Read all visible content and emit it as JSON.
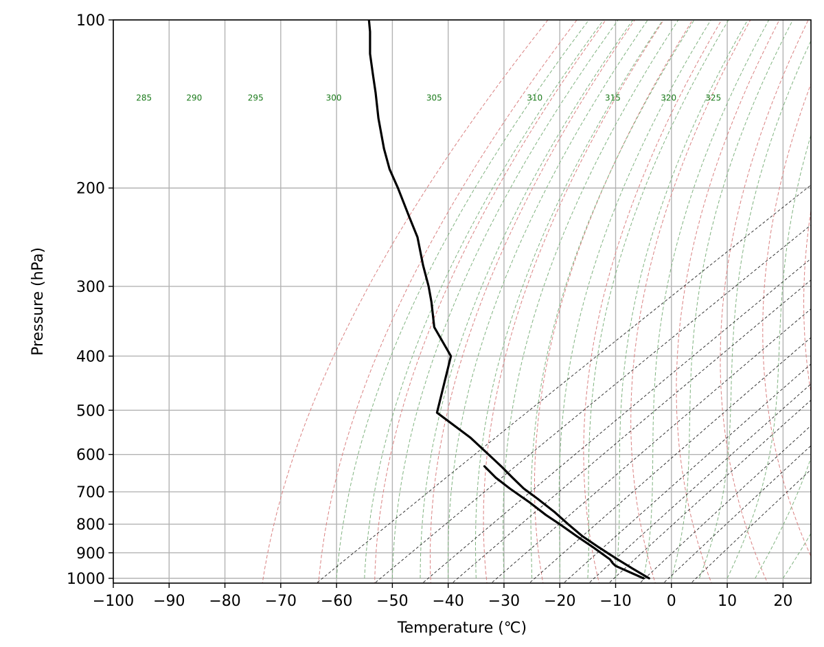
{
  "chart_data": {
    "type": "line",
    "title": "",
    "xlabel": "Temperature (℃)",
    "ylabel": "Pressure (hPa)",
    "xlim": [
      -100,
      25
    ],
    "ylim": [
      1020,
      100
    ],
    "y_scale": "log",
    "grid": true,
    "x_ticks": [
      -100,
      -90,
      -80,
      -70,
      -60,
      -50,
      -40,
      -30,
      -20,
      -10,
      0,
      10,
      20
    ],
    "x_tick_labels": [
      "−100",
      "−90",
      "−80",
      "−70",
      "−60",
      "−50",
      "−40",
      "−30",
      "−20",
      "−10",
      "0",
      "10",
      "20"
    ],
    "y_ticks": [
      100,
      200,
      300,
      400,
      500,
      600,
      700,
      800,
      900,
      1000
    ],
    "y_tick_labels": [
      "100",
      "200",
      "300",
      "400",
      "500",
      "600",
      "700",
      "800",
      "900",
      "1000"
    ],
    "theta_labels": [
      {
        "text": "285",
        "t": -94.5,
        "p": 138
      },
      {
        "text": "290",
        "t": -85.5,
        "p": 138
      },
      {
        "text": "295",
        "t": -74.5,
        "p": 138
      },
      {
        "text": "300",
        "t": -60.5,
        "p": 138
      },
      {
        "text": "305",
        "t": -42.5,
        "p": 138
      },
      {
        "text": "310",
        "t": -24.5,
        "p": 138
      },
      {
        "text": "315",
        "t": -10.5,
        "p": 138
      },
      {
        "text": "320",
        "t": -0.5,
        "p": 138
      },
      {
        "text": "325",
        "t": 7.5,
        "p": 138
      }
    ],
    "series": [
      {
        "color": "#000000",
        "points": [
          [
            -4.0,
            1000
          ],
          [
            -7.0,
            960
          ],
          [
            -10.0,
            920
          ],
          [
            -13.0,
            880
          ],
          [
            -16.0,
            840
          ],
          [
            -18.5,
            800
          ],
          [
            -21.0,
            760
          ],
          [
            -24.0,
            720
          ],
          [
            -26.5,
            690
          ],
          [
            -28.5,
            660
          ],
          [
            -30.5,
            630
          ],
          [
            -32.0,
            610
          ],
          [
            -36.0,
            560
          ],
          [
            -42.0,
            505
          ],
          [
            -39.5,
            400
          ],
          [
            -42.5,
            355
          ],
          [
            -43.0,
            320
          ],
          [
            -43.5,
            300
          ],
          [
            -44.5,
            275
          ],
          [
            -45.5,
            245
          ],
          [
            -47.0,
            225
          ],
          [
            -49.0,
            200
          ],
          [
            -50.5,
            185
          ],
          [
            -51.5,
            170
          ],
          [
            -52.5,
            150
          ],
          [
            -53.0,
            135
          ],
          [
            -53.5,
            125
          ],
          [
            -54.0,
            115
          ],
          [
            -54.0,
            105
          ],
          [
            -54.2,
            100
          ]
        ]
      },
      {
        "color": "#000000",
        "points": [
          [
            -5.0,
            1000
          ],
          [
            -10.0,
            950
          ],
          [
            -10.5,
            940
          ],
          [
            -11.0,
            925
          ],
          [
            -14.0,
            880
          ],
          [
            -17.0,
            840
          ],
          [
            -20.0,
            800
          ],
          [
            -22.5,
            770
          ],
          [
            -25.5,
            730
          ],
          [
            -29.0,
            690
          ],
          [
            -31.5,
            660
          ],
          [
            -33.5,
            630
          ]
        ]
      }
    ],
    "reference_lines": {
      "dry_adiabats_color": "#d98080",
      "moist_adiabats_color": "#7fb27f",
      "mixing_ratio_color": "#222222",
      "grid_color": "#b3b3b3"
    }
  }
}
